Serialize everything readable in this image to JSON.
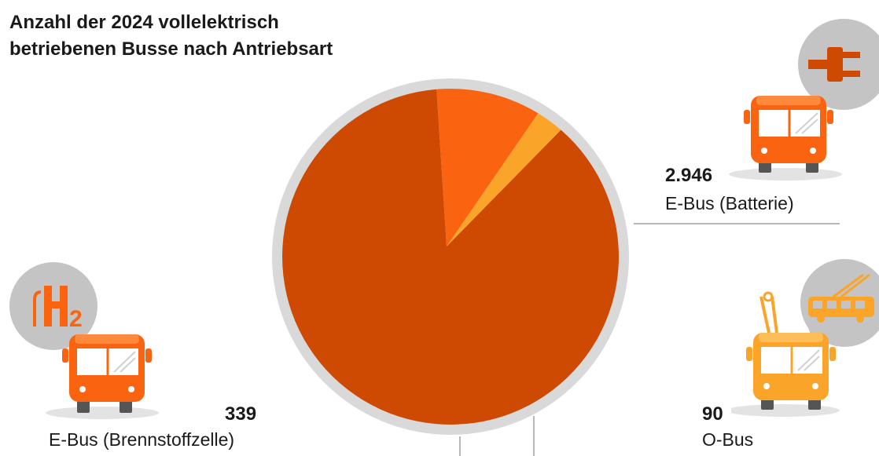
{
  "chart_data": {
    "type": "pie",
    "title": "Anzahl der 2024 vollelektrisch betriebenen Busse nach Antriebsart",
    "slices": [
      {
        "label": "E-Bus (Batterie)",
        "value": 2946,
        "display": "2.946"
      },
      {
        "label": "E-Bus (Brennstoffzelle)",
        "value": 339,
        "display": "339"
      },
      {
        "label": "O-Bus",
        "value": 90,
        "display": "90"
      }
    ]
  },
  "colors": {
    "batterie": "#CE4A03",
    "brennstoff": "#FA6410",
    "obus": "#FBA42A",
    "ring": "#D9D9D9",
    "shadow": "#E3E3E3",
    "bubble": "#C4C4C4",
    "connector": "#A0A0A0"
  },
  "icons": {
    "batterie": [
      "plug-icon",
      "bus-icon"
    ],
    "brennstoff": [
      "hydrogen-h2-icon",
      "bus-icon"
    ],
    "obus": [
      "trolleybus-icon",
      "bus-icon"
    ]
  }
}
